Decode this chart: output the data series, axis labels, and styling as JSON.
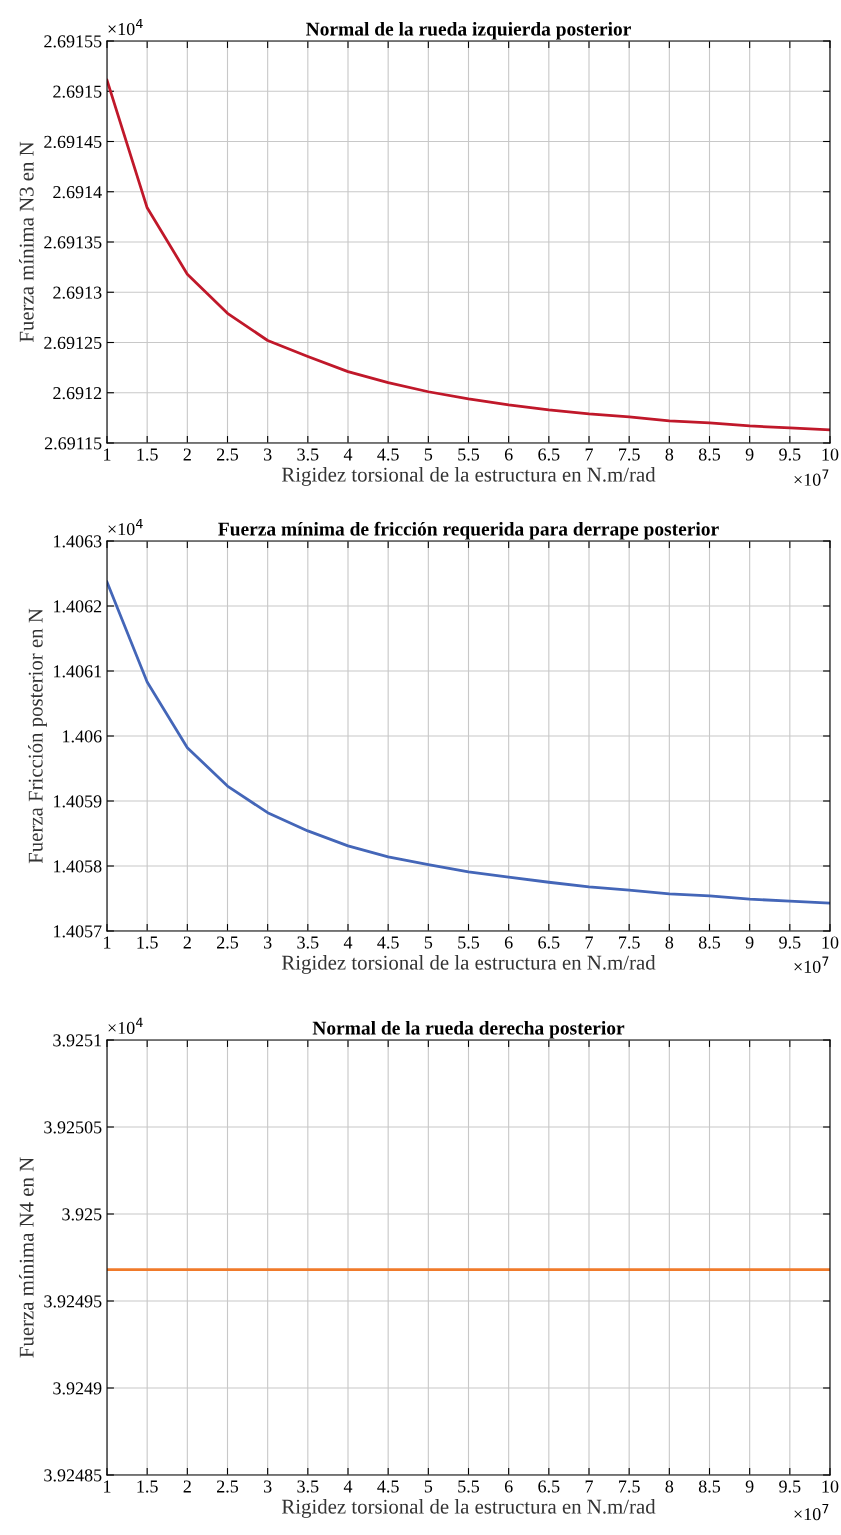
{
  "chart_data": [
    {
      "type": "line",
      "title": "Normal de la rueda izquierda posterior",
      "xlabel": "Rigidez torsional de la estructura en N.m/rad",
      "ylabel": "Fuerza mínima N3 en N",
      "annotations": [
        "×10$^{4}$",
        "×10$^{7}$"
      ],
      "x": [
        1,
        1.5,
        2,
        2.5,
        3,
        3.5,
        4,
        4.5,
        5,
        5.5,
        6,
        6.5,
        7,
        7.5,
        8,
        8.5,
        9,
        9.5,
        10
      ],
      "series": [
        {
          "color": "#c0182a",
          "values": [
            2.691511,
            2.691384,
            2.691318,
            2.691279,
            2.691252,
            2.691236,
            2.691221,
            2.69121,
            2.691201,
            2.691194,
            2.691188,
            2.691183,
            2.691179,
            2.691176,
            2.691172,
            2.69117,
            2.691167,
            2.691165,
            2.691163
          ]
        }
      ],
      "xlim": [
        1,
        10
      ],
      "xticks": [
        1,
        1.5,
        2,
        2.5,
        3,
        3.5,
        4,
        4.5,
        5,
        5.5,
        6,
        6.5,
        7,
        7.5,
        8,
        8.5,
        9,
        9.5,
        10
      ],
      "ylim": [
        2.69115,
        2.69155
      ],
      "yticks": [
        2.69115,
        2.6912,
        2.69125,
        2.6913,
        2.69135,
        2.6914,
        2.69145,
        2.6915,
        2.69155
      ],
      "grid": true,
      "legend": false,
      "marker": "none",
      "line_style": "solid"
    },
    {
      "type": "line",
      "title": "Fuerza mínima de fricción requerida para derrape posterior",
      "xlabel": "Rigidez torsional de la estructura en N.m/rad",
      "ylabel": "Fuerza Fricción posterior en N",
      "annotations": [
        "×10$^{4}$",
        "×10$^{7}$"
      ],
      "x": [
        1,
        1.5,
        2,
        2.5,
        3,
        3.5,
        4,
        4.5,
        5,
        5.5,
        6,
        6.5,
        7,
        7.5,
        8,
        8.5,
        9,
        9.5,
        10
      ],
      "series": [
        {
          "color": "#4466b8",
          "values": [
            1.406237,
            1.406083,
            1.405982,
            1.405923,
            1.405882,
            1.405854,
            1.405831,
            1.405814,
            1.405802,
            1.405791,
            1.405783,
            1.405775,
            1.405768,
            1.405763,
            1.405757,
            1.405754,
            1.405749,
            1.405746,
            1.405743
          ]
        }
      ],
      "xlim": [
        1,
        10
      ],
      "xticks": [
        1,
        1.5,
        2,
        2.5,
        3,
        3.5,
        4,
        4.5,
        5,
        5.5,
        6,
        6.5,
        7,
        7.5,
        8,
        8.5,
        9,
        9.5,
        10
      ],
      "ylim": [
        1.4057,
        1.4063
      ],
      "yticks": [
        1.4057,
        1.4058,
        1.4059,
        1.406,
        1.4061,
        1.4062,
        1.4063
      ],
      "grid": true,
      "legend": false,
      "marker": "none",
      "line_style": "solid"
    },
    {
      "type": "line",
      "title": "Normal de la rueda derecha posterior",
      "xlabel": "Rigidez torsional de la estructura en N.m/rad",
      "ylabel": "Fuerza mínima N4 en N",
      "annotations": [
        "×10$^{4}$",
        "×10$^{7}$"
      ],
      "x": [
        1,
        1.5,
        2,
        2.5,
        3,
        3.5,
        4,
        4.5,
        5,
        5.5,
        6,
        6.5,
        7,
        7.5,
        8,
        8.5,
        9,
        9.5,
        10
      ],
      "series": [
        {
          "color": "#f07a2a",
          "values": [
            3.924968,
            3.924968,
            3.924968,
            3.924968,
            3.924968,
            3.924968,
            3.924968,
            3.924968,
            3.924968,
            3.924968,
            3.924968,
            3.924968,
            3.924968,
            3.924968,
            3.924968,
            3.924968,
            3.924968,
            3.924968,
            3.924968
          ]
        }
      ],
      "xlim": [
        1,
        10
      ],
      "xticks": [
        1,
        1.5,
        2,
        2.5,
        3,
        3.5,
        4,
        4.5,
        5,
        5.5,
        6,
        6.5,
        7,
        7.5,
        8,
        8.5,
        9,
        9.5,
        10
      ],
      "ylim": [
        3.92485,
        3.9251
      ],
      "yticks": [
        3.92485,
        3.9249,
        3.92495,
        3.925,
        3.92505,
        3.9251
      ],
      "grid": true,
      "legend": false,
      "marker": "none",
      "line_style": "solid"
    }
  ]
}
